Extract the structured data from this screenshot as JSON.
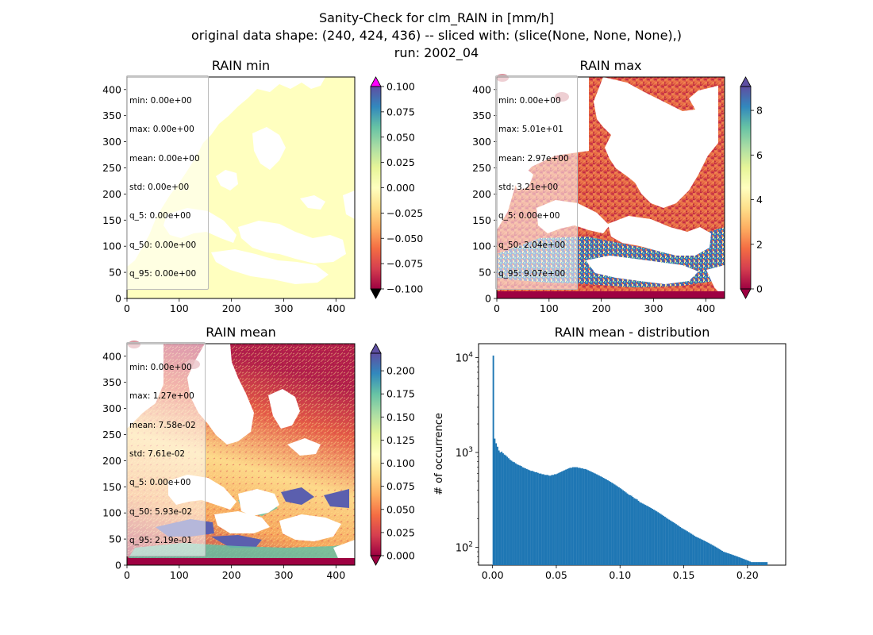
{
  "figure": {
    "title_lines": [
      "Sanity-Check for clm_RAIN in [mm/h]",
      "original data shape: (240, 424, 436) -- sliced with: (slice(None, None, None),)",
      "run: 2002_04"
    ]
  },
  "panels": {
    "min": {
      "title": "RAIN min",
      "stats": [
        "min: 0.00e+00",
        "max: 0.00e+00",
        "mean: 0.00e+00",
        "std: 0.00e+00",
        "q_5: 0.00e+00",
        "q_50: 0.00e+00",
        "q_95: 0.00e+00"
      ],
      "colorbar_ticks": [
        "0.100",
        "0.075",
        "0.050",
        "0.025",
        "0.000",
        "−0.025",
        "−0.050",
        "−0.075",
        "−0.100"
      ],
      "colorbar_range": [
        -0.1,
        0.1
      ]
    },
    "max": {
      "title": "RAIN max",
      "stats": [
        "min: 0.00e+00",
        "max: 5.01e+01",
        "mean: 2.97e+00",
        "std: 3.21e+00",
        "q_5: 0.00e+00",
        "q_50: 2.04e+00",
        "q_95: 9.07e+00"
      ],
      "colorbar_ticks": [
        "8",
        "6",
        "4",
        "2",
        "0"
      ],
      "colorbar_range": [
        0,
        9.07
      ]
    },
    "mean": {
      "title": "RAIN mean",
      "stats": [
        "min: 0.00e+00",
        "max: 1.27e+00",
        "mean: 7.58e-02",
        "std: 7.61e-02",
        "q_5: 0.00e+00",
        "q_50: 5.93e-02",
        "q_95: 2.19e-01"
      ],
      "colorbar_ticks": [
        "0.200",
        "0.175",
        "0.150",
        "0.125",
        "0.100",
        "0.075",
        "0.050",
        "0.025",
        "0.000"
      ],
      "colorbar_range": [
        0,
        0.219
      ]
    },
    "dist": {
      "title": "RAIN mean - distribution",
      "ylabel": "# of occurrence"
    }
  },
  "map_axes": {
    "xticks": [
      "0",
      "100",
      "200",
      "300",
      "400"
    ],
    "yticks": [
      "0",
      "50",
      "100",
      "150",
      "200",
      "250",
      "300",
      "350",
      "400"
    ]
  },
  "chart_data": {
    "type": "bar",
    "title": "RAIN mean - distribution",
    "xlabel": "",
    "ylabel": "# of occurrence",
    "yscale": "log",
    "xlim": [
      -0.011,
      0.23
    ],
    "ylim": [
      65,
      14000
    ],
    "xticks": [
      "0.00",
      "0.05",
      "0.10",
      "0.15",
      "0.20"
    ],
    "yticks": [
      "10^2",
      "10^3",
      "10^4"
    ],
    "bin_start": 0.0,
    "bin_width": 0.001095,
    "colors": {
      "bar": "#1f77b4"
    },
    "values": [
      10500,
      1400,
      1250,
      1150,
      1050,
      1000,
      1020,
      980,
      950,
      930,
      900,
      870,
      840,
      820,
      800,
      790,
      770,
      750,
      740,
      730,
      720,
      700,
      690,
      680,
      670,
      660,
      650,
      640,
      640,
      630,
      620,
      620,
      610,
      600,
      600,
      590,
      590,
      580,
      580,
      580,
      570,
      570,
      580,
      580,
      590,
      590,
      600,
      610,
      620,
      630,
      640,
      650,
      660,
      670,
      680,
      690,
      690,
      700,
      700,
      700,
      700,
      690,
      690,
      680,
      680,
      670,
      670,
      660,
      650,
      640,
      630,
      620,
      610,
      600,
      590,
      580,
      570,
      560,
      550,
      540,
      530,
      520,
      510,
      500,
      490,
      480,
      470,
      460,
      450,
      440,
      430,
      420,
      410,
      400,
      390,
      380,
      370,
      360,
      355,
      350,
      340,
      330,
      325,
      320,
      310,
      300,
      295,
      290,
      285,
      280,
      275,
      270,
      265,
      260,
      255,
      250,
      245,
      240,
      235,
      230,
      225,
      220,
      215,
      210,
      205,
      200,
      196,
      192,
      188,
      184,
      180,
      176,
      172,
      168,
      164,
      160,
      157,
      154,
      151,
      148,
      145,
      142,
      139,
      136,
      133,
      130,
      128,
      126,
      124,
      122,
      120,
      118,
      116,
      114,
      112,
      110,
      108,
      106,
      104,
      102,
      100,
      98,
      96,
      94,
      92,
      90,
      89,
      88,
      87,
      86,
      85,
      84,
      83,
      82,
      81,
      80,
      79,
      78,
      77,
      76,
      75,
      74,
      73,
      72,
      71,
      70,
      70,
      70,
      70,
      70,
      70,
      70,
      70,
      70,
      70,
      70,
      70
    ]
  }
}
